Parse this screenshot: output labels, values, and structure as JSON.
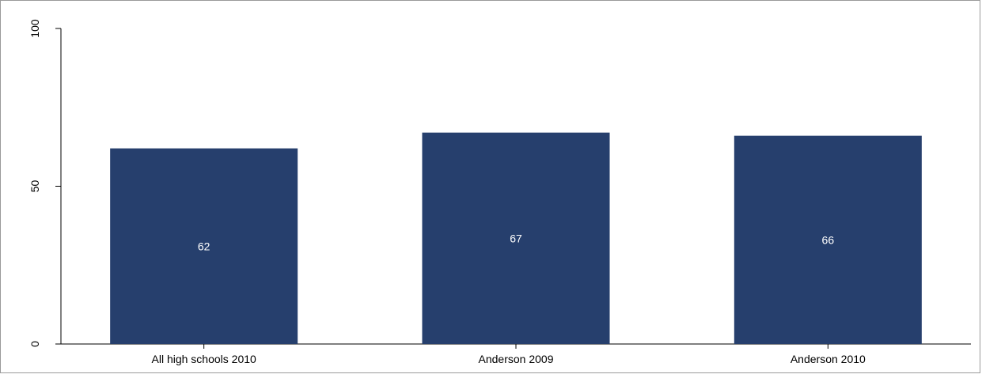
{
  "chart_data": {
    "type": "bar",
    "title": "",
    "xlabel": "",
    "ylabel": "",
    "categories": [
      "All high schools 2010",
      "Anderson 2009",
      "Anderson 2010"
    ],
    "values": [
      62,
      67,
      66
    ],
    "data_labels": [
      "62",
      "67",
      "66"
    ],
    "yticks": [
      0,
      50,
      100
    ],
    "ytick_labels": [
      "0",
      "50",
      "100"
    ],
    "ylim": [
      0,
      100
    ],
    "grid": false,
    "legend": "none",
    "bar_color": "#263f6d",
    "label_color": "#ffffff",
    "axis_color": "#000000"
  }
}
